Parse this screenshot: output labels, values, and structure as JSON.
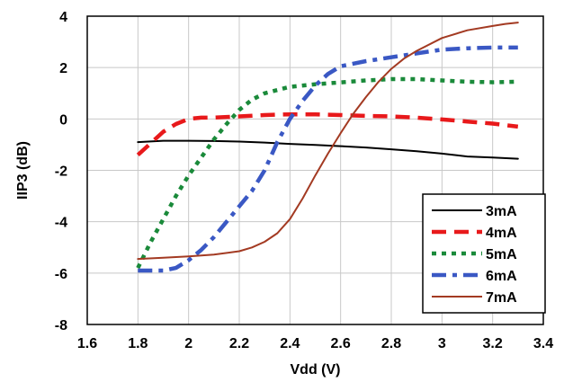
{
  "chart_data": {
    "type": "line",
    "title": "",
    "xlabel": "Vdd (V)",
    "ylabel": "IIP3 (dB)",
    "xlim": [
      1.6,
      3.4
    ],
    "ylim": [
      -8,
      4
    ],
    "xticks": [
      1.6,
      1.8,
      2,
      2.2,
      2.4,
      2.6,
      2.8,
      3,
      3.2,
      3.4
    ],
    "xtick_labels": [
      "1.6",
      "1.8",
      "2",
      "2.2",
      "2.4",
      "2.6",
      "2.8",
      "3",
      "3.2",
      "3.4"
    ],
    "yticks": [
      -8,
      -6,
      -4,
      -2,
      0,
      2,
      4
    ],
    "ytick_labels": [
      "-8",
      "-6",
      "-4",
      "-2",
      "0",
      "2",
      "4"
    ],
    "grid": true,
    "legend_position": "bottom-right",
    "series": [
      {
        "name": "3mA",
        "color": "#000000",
        "style": "solid",
        "points": [
          [
            1.8,
            -0.9
          ],
          [
            1.9,
            -0.85
          ],
          [
            2.0,
            -0.85
          ],
          [
            2.1,
            -0.86
          ],
          [
            2.2,
            -0.88
          ],
          [
            2.3,
            -0.92
          ],
          [
            2.4,
            -0.97
          ],
          [
            2.5,
            -1.01
          ],
          [
            2.6,
            -1.06
          ],
          [
            2.7,
            -1.11
          ],
          [
            2.8,
            -1.18
          ],
          [
            2.9,
            -1.26
          ],
          [
            3.0,
            -1.35
          ],
          [
            3.1,
            -1.46
          ],
          [
            3.2,
            -1.5
          ],
          [
            3.3,
            -1.55
          ]
        ]
      },
      {
        "name": "4mA",
        "color": "#e8191b",
        "style": "dashed",
        "points": [
          [
            1.8,
            -1.4
          ],
          [
            1.85,
            -0.95
          ],
          [
            1.9,
            -0.5
          ],
          [
            1.95,
            -0.2
          ],
          [
            2.0,
            0.0
          ],
          [
            2.05,
            0.05
          ],
          [
            2.1,
            0.05
          ],
          [
            2.2,
            0.1
          ],
          [
            2.3,
            0.15
          ],
          [
            2.4,
            0.18
          ],
          [
            2.5,
            0.18
          ],
          [
            2.6,
            0.15
          ],
          [
            2.7,
            0.12
          ],
          [
            2.8,
            0.1
          ],
          [
            2.9,
            0.05
          ],
          [
            3.0,
            -0.02
          ],
          [
            3.1,
            -0.1
          ],
          [
            3.2,
            -0.18
          ],
          [
            3.3,
            -0.3
          ]
        ]
      },
      {
        "name": "5mA",
        "color": "#1a8a3a",
        "style": "dotted",
        "points": [
          [
            1.8,
            -5.8
          ],
          [
            1.85,
            -4.8
          ],
          [
            1.9,
            -3.9
          ],
          [
            1.95,
            -3.0
          ],
          [
            2.0,
            -2.2
          ],
          [
            2.05,
            -1.5
          ],
          [
            2.1,
            -0.8
          ],
          [
            2.15,
            -0.2
          ],
          [
            2.2,
            0.35
          ],
          [
            2.25,
            0.75
          ],
          [
            2.3,
            1.0
          ],
          [
            2.4,
            1.25
          ],
          [
            2.5,
            1.35
          ],
          [
            2.6,
            1.42
          ],
          [
            2.7,
            1.5
          ],
          [
            2.8,
            1.55
          ],
          [
            2.9,
            1.55
          ],
          [
            3.0,
            1.5
          ],
          [
            3.1,
            1.45
          ],
          [
            3.2,
            1.43
          ],
          [
            3.3,
            1.45
          ]
        ]
      },
      {
        "name": "6mA",
        "color": "#3a58c4",
        "style": "dashdot",
        "points": [
          [
            1.8,
            -5.9
          ],
          [
            1.9,
            -5.9
          ],
          [
            1.95,
            -5.8
          ],
          [
            2.0,
            -5.5
          ],
          [
            2.05,
            -5.1
          ],
          [
            2.1,
            -4.6
          ],
          [
            2.15,
            -4.0
          ],
          [
            2.2,
            -3.4
          ],
          [
            2.25,
            -2.8
          ],
          [
            2.3,
            -2.0
          ],
          [
            2.35,
            -0.9
          ],
          [
            2.4,
            0.0
          ],
          [
            2.45,
            0.7
          ],
          [
            2.5,
            1.3
          ],
          [
            2.55,
            1.75
          ],
          [
            2.6,
            2.05
          ],
          [
            2.7,
            2.25
          ],
          [
            2.8,
            2.4
          ],
          [
            2.9,
            2.55
          ],
          [
            3.0,
            2.7
          ],
          [
            3.1,
            2.75
          ],
          [
            3.2,
            2.78
          ],
          [
            3.3,
            2.78
          ]
        ]
      },
      {
        "name": "7mA",
        "color": "#a33a22",
        "style": "solid",
        "points": [
          [
            1.8,
            -5.45
          ],
          [
            1.9,
            -5.4
          ],
          [
            2.0,
            -5.35
          ],
          [
            2.1,
            -5.28
          ],
          [
            2.2,
            -5.15
          ],
          [
            2.25,
            -5.0
          ],
          [
            2.3,
            -4.78
          ],
          [
            2.35,
            -4.45
          ],
          [
            2.4,
            -3.9
          ],
          [
            2.45,
            -3.1
          ],
          [
            2.5,
            -2.2
          ],
          [
            2.55,
            -1.35
          ],
          [
            2.6,
            -0.55
          ],
          [
            2.65,
            0.2
          ],
          [
            2.7,
            0.85
          ],
          [
            2.75,
            1.45
          ],
          [
            2.8,
            1.95
          ],
          [
            2.85,
            2.35
          ],
          [
            2.9,
            2.65
          ],
          [
            3.0,
            3.15
          ],
          [
            3.1,
            3.45
          ],
          [
            3.2,
            3.62
          ],
          [
            3.25,
            3.7
          ],
          [
            3.3,
            3.75
          ]
        ]
      }
    ]
  }
}
